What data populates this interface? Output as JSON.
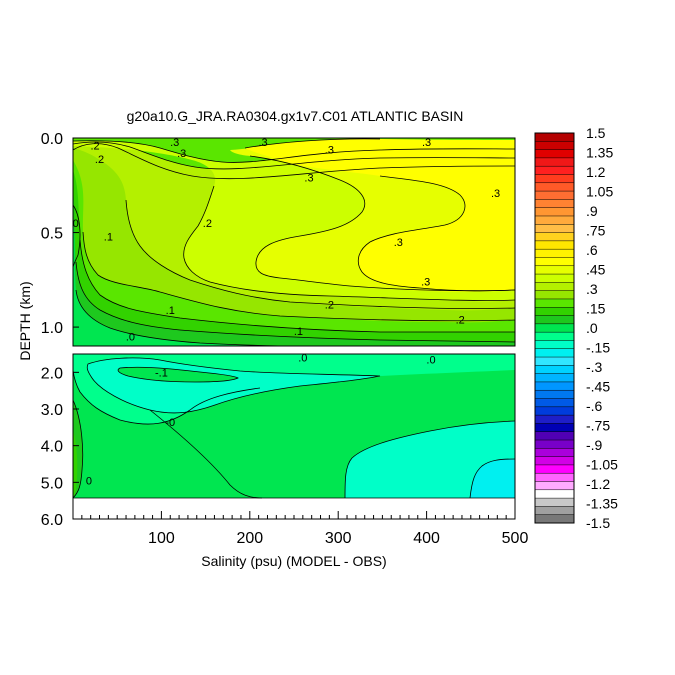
{
  "chart_data": {
    "type": "heatmap",
    "title": "g20a10.G_JRA.RA0304.gx1v7.C01 ATLANTIC BASIN",
    "xlabel": "Salinity (psu) (MODEL - OBS)",
    "ylabel": "DEPTH (km)",
    "xlim": [
      0,
      500
    ],
    "x_ticks": [
      100,
      200,
      300,
      400,
      500
    ],
    "y_ticks_upper": [
      "0.0",
      "0.5",
      "1.0"
    ],
    "y_ticks_lower": [
      "2.0",
      "3.0",
      "4.0",
      "5.0",
      "6.0"
    ],
    "panels": [
      {
        "name": "upper",
        "ylim": [
          0.0,
          1.1
        ]
      },
      {
        "name": "lower",
        "ylim": [
          1.5,
          6.0
        ]
      }
    ],
    "colorbar": {
      "labels": [
        "1.5",
        "1.35",
        "1.2",
        "1.05",
        ".9",
        ".75",
        ".6",
        ".45",
        ".3",
        ".15",
        ".0",
        "-.15",
        "-.3",
        "-.45",
        "-.6",
        "-.75",
        "-.9",
        "-1.05",
        "-1.2",
        "-1.35",
        "-1.5"
      ],
      "colors": [
        "#b40000",
        "#cc0000",
        "#e00000",
        "#f01818",
        "#ff2020",
        "#ff3c1e",
        "#ff5a28",
        "#ff6e32",
        "#ff8232",
        "#ff9632",
        "#ffaa3c",
        "#ffbe46",
        "#ffd21e",
        "#ffe600",
        "#fff200",
        "#ffff00",
        "#e6ff00",
        "#ccff00",
        "#b4f000",
        "#96e600",
        "#5ae600",
        "#32d200",
        "#1ec81e",
        "#00e650",
        "#00ff8c",
        "#00ffc8",
        "#00f0f0",
        "#32e6ff",
        "#00d2ff",
        "#00b4ff",
        "#0096ff",
        "#0078f0",
        "#005ae6",
        "#003cdc",
        "#1e1ec8",
        "#0000b4",
        "#5000b4",
        "#7800c8",
        "#aa00dc",
        "#d200e6",
        "#ff00ff",
        "#ff64ff",
        "#ffaaff",
        "#ffffff",
        "#c8c8c8",
        "#a0a0a0",
        "#787878"
      ]
    },
    "contour_labels": [
      {
        "text": ".2",
        "x": 25,
        "y": 0.04
      },
      {
        "text": ".3",
        "x": 115,
        "y": 0.02
      },
      {
        "text": ".3",
        "x": 215,
        "y": 0.02
      },
      {
        "text": ".3",
        "x": 290,
        "y": 0.06
      },
      {
        "text": ".3",
        "x": 400,
        "y": 0.02
      },
      {
        "text": ".2",
        "x": 30,
        "y": 0.11
      },
      {
        "text": ".3",
        "x": 123,
        "y": 0.08
      },
      {
        "text": ".3",
        "x": 267,
        "y": 0.21
      },
      {
        "text": ".3",
        "x": 478,
        "y": 0.29
      },
      {
        "text": ".2",
        "x": 152,
        "y": 0.45
      },
      {
        "text": ".1",
        "x": 40,
        "y": 0.52
      },
      {
        "text": "0",
        "x": 3,
        "y": 0.45
      },
      {
        "text": ".3",
        "x": 368,
        "y": 0.55
      },
      {
        "text": ".3",
        "x": 399,
        "y": 0.76
      },
      {
        "text": ".2",
        "x": 290,
        "y": 0.88
      },
      {
        "text": ".2",
        "x": 438,
        "y": 0.96
      },
      {
        "text": ".1",
        "x": 110,
        "y": 0.91
      },
      {
        "text": ".1",
        "x": 255,
        "y": 1.02
      },
      {
        "text": ".0",
        "x": 65,
        "y": 1.05
      },
      {
        "text": ".0",
        "x": 260,
        "y": 1.6
      },
      {
        "text": ".0",
        "x": 405,
        "y": 1.65
      },
      {
        "text": "-.1",
        "x": 100,
        "y": 2.0
      },
      {
        "text": "-0",
        "x": 110,
        "y": 3.35
      },
      {
        "text": "0",
        "x": 18,
        "y": 4.95
      }
    ]
  }
}
